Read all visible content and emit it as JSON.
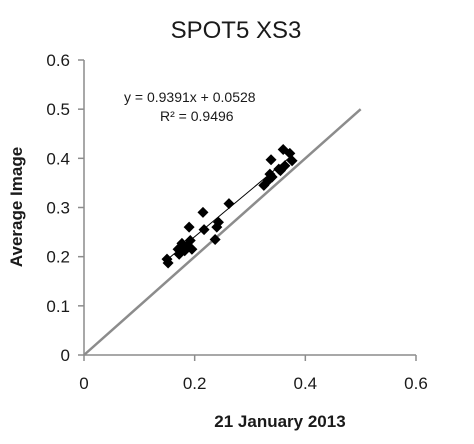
{
  "chart_data": {
    "type": "scatter",
    "title": "SPOT5 XS3",
    "xlabel": "21 January 2013",
    "ylabel": "Average Image",
    "xlim": [
      0,
      0.6
    ],
    "ylim": [
      0,
      0.6
    ],
    "x_ticks": [
      "0",
      "0.2",
      "0.4",
      "0.6"
    ],
    "y_ticks": [
      "0",
      "0.1",
      "0.2",
      "0.3",
      "0.4",
      "0.5",
      "0.6"
    ],
    "grid": false,
    "legend": "none",
    "marker": "diamond",
    "point_color": "#000000",
    "points": [
      {
        "x": 0.15,
        "y": 0.195
      },
      {
        "x": 0.152,
        "y": 0.187
      },
      {
        "x": 0.17,
        "y": 0.215
      },
      {
        "x": 0.172,
        "y": 0.205
      },
      {
        "x": 0.177,
        "y": 0.227
      },
      {
        "x": 0.182,
        "y": 0.212
      },
      {
        "x": 0.185,
        "y": 0.22
      },
      {
        "x": 0.19,
        "y": 0.26
      },
      {
        "x": 0.192,
        "y": 0.233
      },
      {
        "x": 0.195,
        "y": 0.215
      },
      {
        "x": 0.215,
        "y": 0.29
      },
      {
        "x": 0.217,
        "y": 0.255
      },
      {
        "x": 0.237,
        "y": 0.235
      },
      {
        "x": 0.24,
        "y": 0.26
      },
      {
        "x": 0.243,
        "y": 0.27
      },
      {
        "x": 0.262,
        "y": 0.308
      },
      {
        "x": 0.325,
        "y": 0.345
      },
      {
        "x": 0.333,
        "y": 0.355
      },
      {
        "x": 0.336,
        "y": 0.368
      },
      {
        "x": 0.338,
        "y": 0.397
      },
      {
        "x": 0.34,
        "y": 0.362
      },
      {
        "x": 0.352,
        "y": 0.378
      },
      {
        "x": 0.355,
        "y": 0.375
      },
      {
        "x": 0.36,
        "y": 0.418
      },
      {
        "x": 0.363,
        "y": 0.385
      },
      {
        "x": 0.372,
        "y": 0.41
      },
      {
        "x": 0.376,
        "y": 0.395
      }
    ],
    "trendline": {
      "equation": "y = 0.9391x + 0.0528",
      "r_squared": "R² = 0.9496",
      "slope": 0.9391,
      "intercept": 0.0528,
      "x_range": [
        0.15,
        0.375
      ],
      "color": "#000000"
    },
    "reference_line": {
      "from": [
        0,
        0
      ],
      "to": [
        0.5,
        0.5
      ],
      "color": "#8c8c8c"
    }
  }
}
